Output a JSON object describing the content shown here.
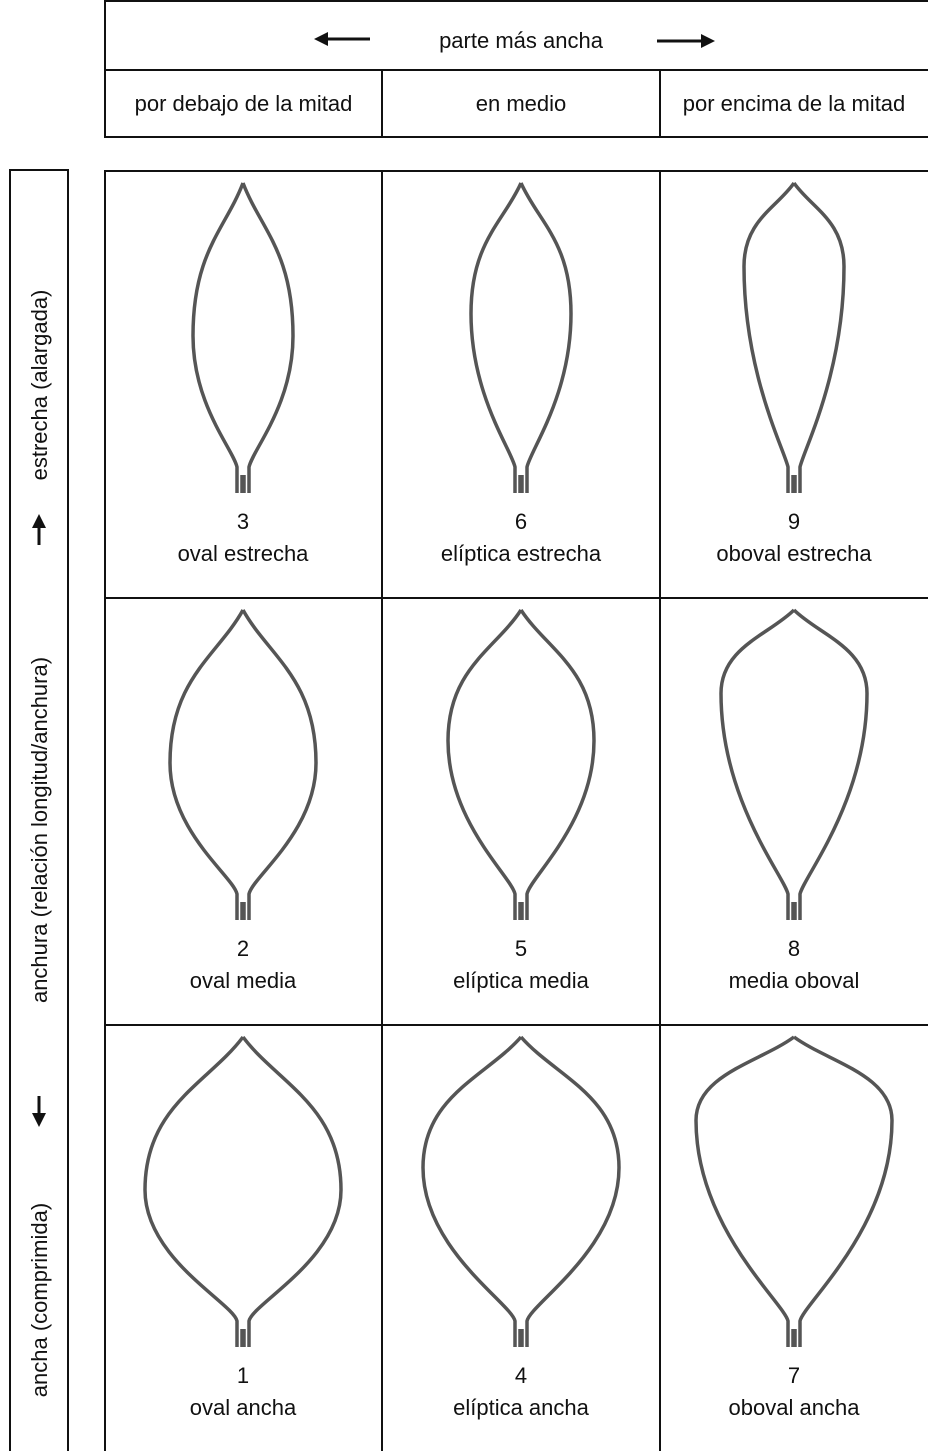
{
  "header": {
    "title": "parte más ancha",
    "columns": [
      "por debajo de la mitad",
      "en medio",
      "por encima de la mitad"
    ]
  },
  "side_label": {
    "narrow": "estrecha (alargada)",
    "axis": "anchura (relación longitud/anchura)",
    "wide": "ancha (comprimida)"
  },
  "grid": {
    "rows": [
      [
        {
          "number": 3,
          "label": "oval estrecha"
        },
        {
          "number": 6,
          "label": "elíptica estrecha"
        },
        {
          "number": 9,
          "label": "oboval estrecha"
        }
      ],
      [
        {
          "number": 2,
          "label": "oval media"
        },
        {
          "number": 5,
          "label": "elíptica media"
        },
        {
          "number": 8,
          "label": "media oboval"
        }
      ],
      [
        {
          "number": 1,
          "label": "oval ancha"
        },
        {
          "number": 4,
          "label": "elíptica ancha"
        },
        {
          "number": 7,
          "label": "oboval ancha"
        }
      ]
    ]
  }
}
